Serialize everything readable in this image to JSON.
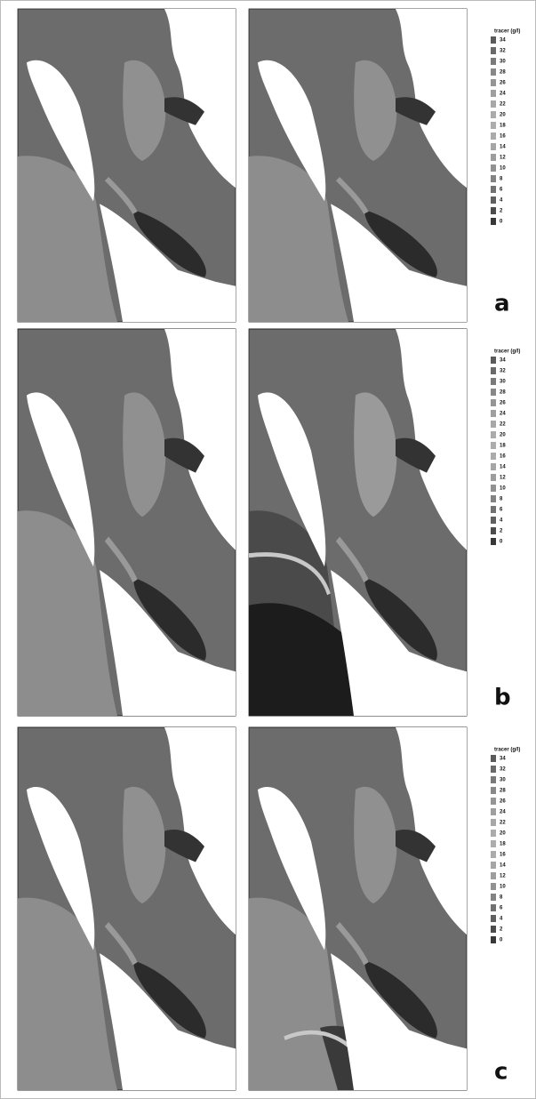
{
  "panels": [
    {
      "label": "a",
      "legend": {
        "title": "tracer (g/l)",
        "labels": [
          "34",
          "32",
          "30",
          "28",
          "26",
          "24",
          "22",
          "20",
          "18",
          "16",
          "14",
          "12",
          "10",
          "8",
          "6",
          "4",
          "2",
          "0"
        ]
      }
    },
    {
      "label": "b",
      "legend": {
        "title": "tracer (g/l)",
        "labels": [
          "34",
          "32",
          "30",
          "28",
          "26",
          "24",
          "22",
          "20",
          "18",
          "16",
          "14",
          "12",
          "10",
          "8",
          "6",
          "4",
          "2",
          "0"
        ]
      }
    },
    {
      "label": "c",
      "legend": {
        "title": "tracer (g/l)",
        "labels": [
          "34",
          "32",
          "30",
          "28",
          "26",
          "24",
          "22",
          "20",
          "18",
          "16",
          "14",
          "12",
          "10",
          "8",
          "6",
          "4",
          "2",
          "0"
        ]
      }
    }
  ]
}
